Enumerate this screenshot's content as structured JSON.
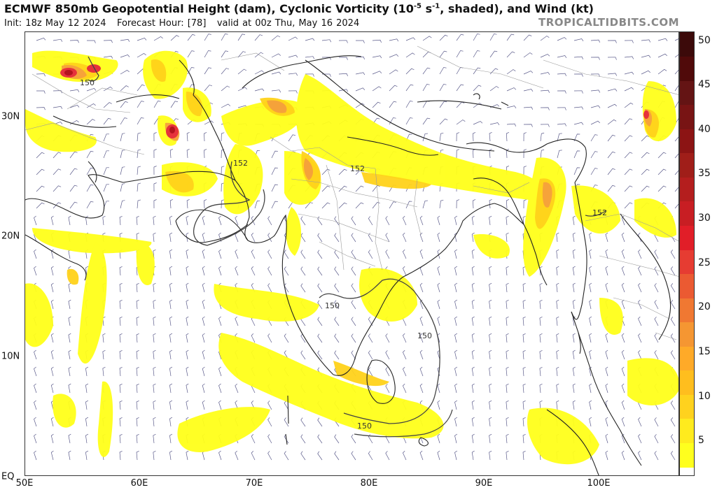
{
  "header": {
    "title_main": "ECMWF 850mb Geopotential Height (dam), Cyclonic Vorticity (10",
    "title_sup": "-5",
    "title_rest": " s",
    "title_sup2": "-1",
    "title_end": ", shaded), and Wind (kt)",
    "subtitle_init": "Init: 18z May 12 2024",
    "subtitle_hour": "Forecast Hour: [78]",
    "subtitle_valid": "valid at 00z Thu, May 16 2024",
    "credit": "TROPICALTIDBITS.COM"
  },
  "map": {
    "lon_labels": [
      "50E",
      "60E",
      "70E",
      "80E",
      "90E",
      "100E"
    ],
    "lat_labels": [
      "30N",
      "20N",
      "10N",
      "EQ"
    ],
    "contour_labels": [
      "150",
      "152",
      "152",
      "150",
      "150",
      "150",
      "152"
    ],
    "colors": {
      "vort_light": "#ffff1a",
      "vort_mid": "#ffd21a",
      "vort_orange": "#f5a03c",
      "vort_red": "#e6323c",
      "vort_dark": "#b4141e",
      "border": "#222222",
      "state": "#9a9a9a",
      "barb": "#5a5a8a"
    }
  },
  "colorbar": {
    "labels": [
      "50",
      "45",
      "40",
      "35",
      "30",
      "25",
      "20",
      "15",
      "10",
      "5"
    ],
    "colors": [
      "#ffff1e",
      "#ffeb1e",
      "#ffd21e",
      "#ffbe1e",
      "#ffaa28",
      "#f59632",
      "#f07832",
      "#eb5a32",
      "#e63c32",
      "#e11e28",
      "#c81e23",
      "#b41e1e",
      "#a01e19",
      "#8c1414",
      "#781414",
      "#641414",
      "#500a0a",
      "#3c0a0a"
    ]
  }
}
